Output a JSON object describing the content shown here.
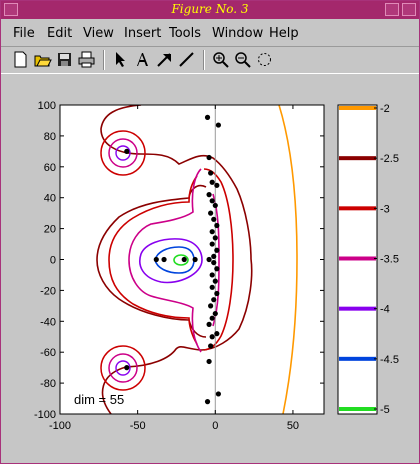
{
  "window": {
    "title": "Figure No. 3"
  },
  "menu": {
    "items": [
      "File",
      "Edit",
      "View",
      "Insert",
      "Tools",
      "Window",
      "Help"
    ]
  },
  "toolbar": {
    "icons": [
      "new-file-icon",
      "open-folder-icon",
      "save-icon",
      "print-icon",
      "select-arrow-icon",
      "add-text-icon",
      "add-arrow-icon",
      "add-line-icon",
      "zoom-in-icon",
      "zoom-out-icon",
      "rotate-icon"
    ]
  },
  "chart_data": {
    "type": "contour",
    "xlim": [
      -100,
      70
    ],
    "ylim": [
      -100,
      100
    ],
    "xticks": [
      -100,
      -50,
      0,
      50
    ],
    "yticks": [
      -100,
      -80,
      -60,
      -40,
      -20,
      0,
      20,
      40,
      60,
      80,
      100
    ],
    "annotation": "dim = 55",
    "levels": [
      -2,
      -2.5,
      -3,
      -3.5,
      -4,
      -4.5,
      -5
    ],
    "level_colors": [
      "#ff9900",
      "#8b0000",
      "#cc0000",
      "#cc0088",
      "#8800ee",
      "#0044dd",
      "#22dd22"
    ],
    "eigenvalues": [
      {
        "x": -5,
        "y": 92
      },
      {
        "x": 2,
        "y": 87
      },
      {
        "x": -4,
        "y": 66
      },
      {
        "x": -3,
        "y": 56
      },
      {
        "x": -2,
        "y": 50
      },
      {
        "x": 1,
        "y": 48
      },
      {
        "x": -4,
        "y": 42
      },
      {
        "x": -2,
        "y": 38
      },
      {
        "x": 0,
        "y": 35
      },
      {
        "x": -3,
        "y": 30
      },
      {
        "x": -1,
        "y": 26
      },
      {
        "x": 1,
        "y": 22
      },
      {
        "x": -2,
        "y": 18
      },
      {
        "x": 0,
        "y": 14
      },
      {
        "x": -2,
        "y": 10
      },
      {
        "x": 1,
        "y": 6
      },
      {
        "x": -1,
        "y": 2
      },
      {
        "x": -4,
        "y": 0
      },
      {
        "x": -1,
        "y": -2
      },
      {
        "x": 1,
        "y": -6
      },
      {
        "x": -2,
        "y": -10
      },
      {
        "x": 0,
        "y": -14
      },
      {
        "x": -2,
        "y": -18
      },
      {
        "x": 1,
        "y": -22
      },
      {
        "x": -1,
        "y": -26
      },
      {
        "x": -3,
        "y": -30
      },
      {
        "x": 0,
        "y": -35
      },
      {
        "x": -2,
        "y": -38
      },
      {
        "x": -4,
        "y": -42
      },
      {
        "x": 1,
        "y": -48
      },
      {
        "x": -2,
        "y": -50
      },
      {
        "x": -3,
        "y": -56
      },
      {
        "x": -4,
        "y": -66
      },
      {
        "x": 2,
        "y": -87
      },
      {
        "x": -5,
        "y": -92
      },
      {
        "x": -38,
        "y": 0
      },
      {
        "x": -33,
        "y": 0
      },
      {
        "x": -20,
        "y": 0
      },
      {
        "x": -57,
        "y": 70
      },
      {
        "x": -57,
        "y": -70
      },
      {
        "x": -13,
        "y": 0
      }
    ]
  }
}
